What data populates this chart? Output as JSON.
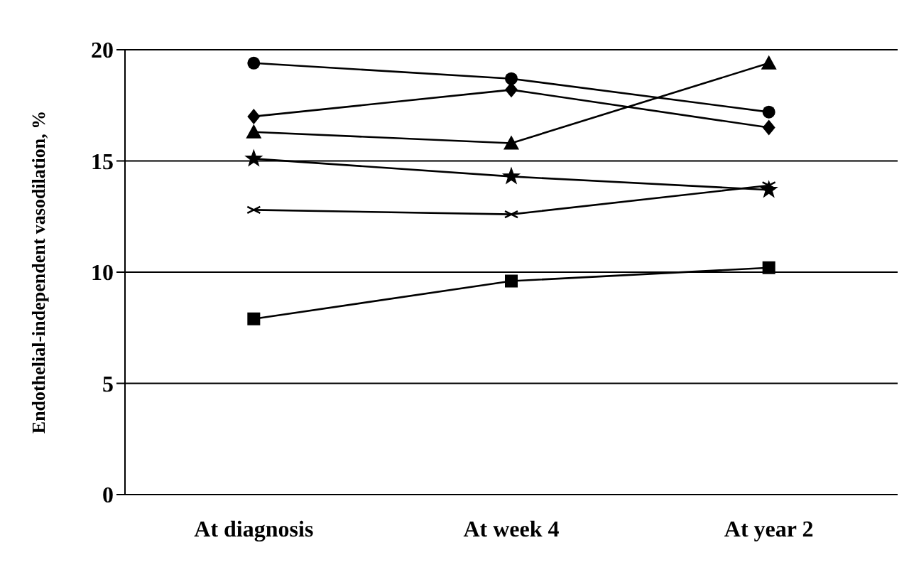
{
  "chart_data": {
    "type": "line",
    "ylabel": "Endothelial-independent vasodilation, %",
    "categories": [
      "At diagnosis",
      "At week 4",
      "At year 2"
    ],
    "series": [
      {
        "color": "#000000",
        "marker": "circle",
        "values": [
          19.4,
          18.7,
          17.2
        ]
      },
      {
        "color": "#000000",
        "marker": "diamond",
        "values": [
          17.0,
          18.2,
          16.5
        ]
      },
      {
        "color": "#000000",
        "marker": "triangle",
        "values": [
          16.3,
          15.8,
          19.4
        ]
      },
      {
        "color": "#000000",
        "marker": "star",
        "values": [
          15.1,
          14.3,
          13.7
        ]
      },
      {
        "color": "#000000",
        "marker": "cross",
        "values": [
          12.8,
          12.6,
          13.9
        ]
      },
      {
        "color": "#000000",
        "marker": "square",
        "values": [
          7.9,
          9.6,
          10.2
        ]
      }
    ],
    "ylim": [
      0,
      20
    ],
    "yticks": [
      0,
      5,
      10,
      15,
      20
    ],
    "grid": "y",
    "legend": false,
    "line_style": "solid"
  }
}
